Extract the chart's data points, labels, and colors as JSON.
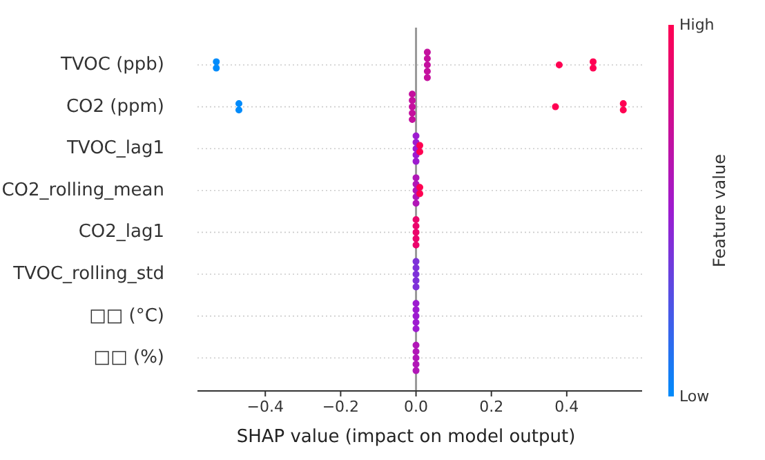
{
  "chart_data": {
    "type": "scatter",
    "orientation": "horizontal",
    "xlabel": "SHAP value (impact on model output)",
    "clabel": "Feature value",
    "categories": [
      "TVOC (ppb)",
      "CO2 (ppm)",
      "TVOC_lag1",
      "CO2_rolling_mean",
      "CO2_lag1",
      "TVOC_rolling_std",
      "□□ (°C)",
      "□□ (%)"
    ],
    "xlim": [
      -0.58,
      0.6
    ],
    "xticks": [
      {
        "value": -0.4,
        "label": "−0.4"
      },
      {
        "value": -0.2,
        "label": "−0.2"
      },
      {
        "value": 0,
        "label": "0.0"
      },
      0.2,
      0.4
    ],
    "clim": [
      0,
      1
    ],
    "cticks": [
      {
        "value": 0,
        "label": "Low"
      },
      {
        "value": 1,
        "label": "High"
      }
    ],
    "grid": "y",
    "marker": "circle",
    "ref_lines": [
      {
        "axis": "x",
        "value": 0,
        "color": "#999999"
      }
    ],
    "series": [
      {
        "x": [
          "TVOC (ppb)",
          "TVOC (ppb)",
          "TVOC (ppb)",
          "TVOC (ppb)",
          "TVOC (ppb)",
          "TVOC (ppb)",
          "TVOC (ppb)",
          "TVOC (ppb)",
          "TVOC (ppb)",
          "TVOC (ppb)"
        ],
        "values": [
          -0.53,
          -0.53,
          0.03,
          0.03,
          0.03,
          0.03,
          0.03,
          0.38,
          0.47,
          0.47
        ],
        "cvalues": [
          0,
          0,
          0.7,
          0.7,
          0.7,
          0.7,
          0.7,
          1,
          1,
          1
        ],
        "colors": [
          "#008bfb",
          "#008bfb",
          "#c4109e",
          "#c4109e",
          "#c4109e",
          "#c4109e",
          "#c4109e",
          "#ff0052",
          "#ff0052",
          "#ff0052"
        ]
      },
      {
        "x": [
          "CO2 (ppm)",
          "CO2 (ppm)",
          "CO2 (ppm)",
          "CO2 (ppm)",
          "CO2 (ppm)",
          "CO2 (ppm)",
          "CO2 (ppm)",
          "CO2 (ppm)",
          "CO2 (ppm)",
          "CO2 (ppm)"
        ],
        "values": [
          -0.47,
          -0.47,
          -0.01,
          -0.01,
          -0.01,
          -0.01,
          -0.01,
          0.37,
          0.55,
          0.55
        ],
        "cvalues": [
          0,
          0,
          0.7,
          0.7,
          0.7,
          0.7,
          0.7,
          1,
          1,
          1
        ],
        "colors": [
          "#008bfb",
          "#008bfb",
          "#c4109e",
          "#c4109e",
          "#c4109e",
          "#c4109e",
          "#c4109e",
          "#ff0052",
          "#ff0052",
          "#ff0052"
        ]
      },
      {
        "x": [
          "TVOC_lag1",
          "TVOC_lag1",
          "TVOC_lag1",
          "TVOC_lag1",
          "TVOC_lag1",
          "TVOC_lag1",
          "TVOC_lag1"
        ],
        "values": [
          0,
          0,
          0,
          0,
          0,
          0.01,
          0.01
        ],
        "cvalues": [
          0.5,
          0.5,
          0.5,
          0.5,
          0.5,
          1,
          1
        ],
        "colors": [
          "#9d1bd0",
          "#9d1bd0",
          "#9d1bd0",
          "#9d1bd0",
          "#9d1bd0",
          "#ff0052",
          "#ff0052"
        ]
      },
      {
        "x": [
          "CO2_rolling_mean",
          "CO2_rolling_mean",
          "CO2_rolling_mean",
          "CO2_rolling_mean",
          "CO2_rolling_mean",
          "CO2_rolling_mean",
          "CO2_rolling_mean"
        ],
        "values": [
          0,
          0,
          0,
          0,
          0,
          0.01,
          0.01
        ],
        "cvalues": [
          0.6,
          0.6,
          0.6,
          0.6,
          0.6,
          1,
          1
        ],
        "colors": [
          "#b116b7",
          "#b116b7",
          "#b116b7",
          "#b116b7",
          "#b116b7",
          "#ff0052",
          "#ff0052"
        ]
      },
      {
        "x": [
          "CO2_lag1",
          "CO2_lag1",
          "CO2_lag1",
          "CO2_lag1",
          "CO2_lag1"
        ],
        "values": [
          0,
          0,
          0,
          0,
          0
        ],
        "cvalues": [
          0.9,
          0.9,
          0.9,
          0.9,
          0.9
        ]
      },
      {
        "x": [
          "TVOC_rolling_std",
          "TVOC_rolling_std",
          "TVOC_rolling_std",
          "TVOC_rolling_std",
          "TVOC_rolling_std"
        ],
        "values": [
          0,
          0,
          0,
          0,
          0
        ],
        "cvalues": [
          0.4,
          0.4,
          0.4,
          0.4,
          0.4
        ]
      },
      {
        "x": [
          "□□ (°C)",
          "□□ (°C)",
          "□□ (°C)",
          "□□ (°C)",
          "□□ (°C)"
        ],
        "values": [
          0,
          0,
          0,
          0,
          0
        ],
        "cvalues": [
          0.5,
          0.5,
          0.5,
          0.5,
          0.5
        ]
      },
      {
        "x": [
          "□□ (%)",
          "□□ (%)",
          "□□ (%)",
          "□□ (%)",
          "□□ (%)"
        ],
        "values": [
          0,
          0,
          0,
          0,
          0
        ],
        "cvalues": [
          0.6,
          0.6,
          0.6,
          0.6,
          0.6
        ]
      }
    ]
  }
}
